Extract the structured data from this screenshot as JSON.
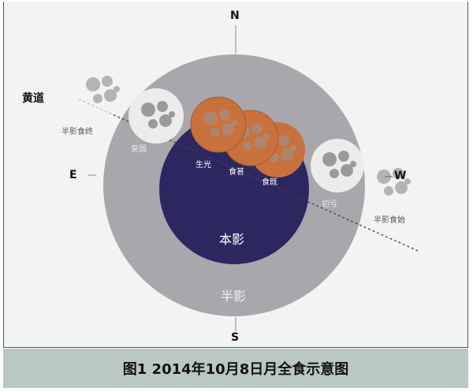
{
  "directions": {
    "north": "N",
    "south": "S",
    "east": "E",
    "west": "W"
  },
  "ecliptic_label": "黄道",
  "regions": {
    "umbra": "本影",
    "penumbra": "半影"
  },
  "phases": {
    "penumbral_start": "半影食始",
    "first_contact": "初亏",
    "second_contact": "食既",
    "maximum": "食甚",
    "third_contact": "生光",
    "fourth_contact": "复圆",
    "penumbral_end": "半影食终"
  },
  "caption": "图1 2014年10月8日月全食示意图",
  "colors": {
    "penumbra": "#a9a7ab",
    "umbra": "#2c2760",
    "eclipsed_moon": "#c8713c",
    "full_moon": "#ececec",
    "caption_bg": "#b9c9c2"
  }
}
